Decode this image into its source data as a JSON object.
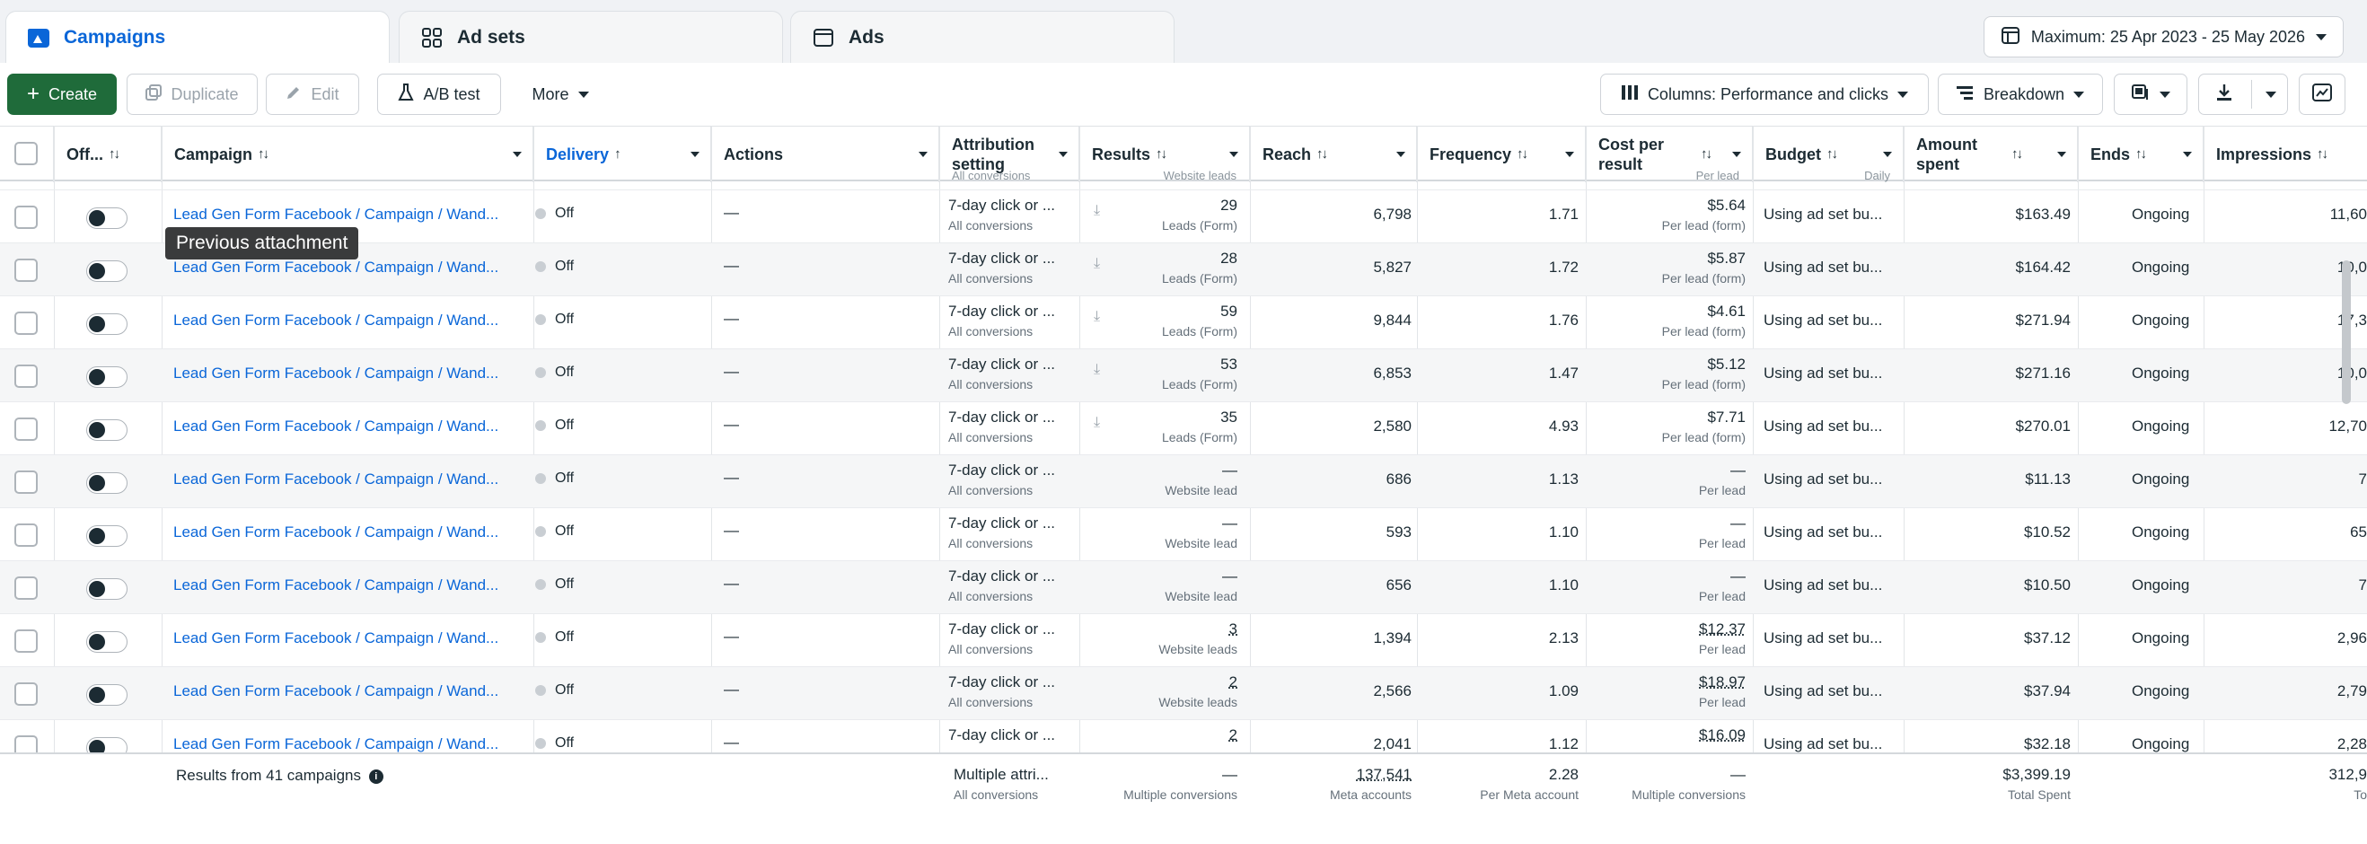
{
  "tabs": [
    {
      "label": "Campaigns",
      "icon": "campaigns-icon"
    },
    {
      "label": "Ad sets",
      "icon": "adsets-grid-icon"
    },
    {
      "label": "Ads",
      "icon": "ads-window-icon"
    }
  ],
  "date_range": "Maximum: 25 Apr 2023 - 25 May 2026",
  "toolbar": {
    "create": "Create",
    "duplicate": "Duplicate",
    "edit": "Edit",
    "ab_test": "A/B test",
    "more": "More",
    "columns": "Columns: Performance and clicks",
    "breakdown": "Breakdown"
  },
  "columns": {
    "off": "Off...",
    "campaign": "Campaign",
    "delivery": "Delivery",
    "actions": "Actions",
    "attribution": "Attribution setting",
    "results": "Results",
    "reach": "Reach",
    "frequency": "Frequency",
    "cost": "Cost per result",
    "budget": "Budget",
    "amount": "Amount spent",
    "ends": "Ends",
    "impressions": "Impressions"
  },
  "clipped_header_subs": {
    "attribution": "All conversions",
    "results": "Website leads",
    "cost": "Per lead",
    "budget": "Daily"
  },
  "rows": [
    {
      "campaign": "Lead Gen Form Facebook / Campaign / Wand...",
      "delivery": "Off",
      "actions": "—",
      "attribution": "7-day click or ...",
      "attribution_sub": "All conversions",
      "results": "29",
      "results_sub": "Leads (Form)",
      "reach": "6,798",
      "frequency": "1.71",
      "cost": "$5.64",
      "cost_sub": "Per lead (form)",
      "budget": "Using ad set bu...",
      "amount": "$163.49",
      "ends": "Ongoing",
      "impressions": "11,60"
    },
    {
      "campaign": "Lead Gen Form Facebook / Campaign / Wand...",
      "delivery": "Off",
      "actions": "—",
      "attribution": "7-day click or ...",
      "attribution_sub": "All conversions",
      "results": "28",
      "results_sub": "Leads (Form)",
      "reach": "5,827",
      "frequency": "1.72",
      "cost": "$5.87",
      "cost_sub": "Per lead (form)",
      "budget": "Using ad set bu...",
      "amount": "$164.42",
      "ends": "Ongoing",
      "impressions": "10,0"
    },
    {
      "campaign": "Lead Gen Form Facebook / Campaign / Wand...",
      "delivery": "Off",
      "actions": "—",
      "attribution": "7-day click or ...",
      "attribution_sub": "All conversions",
      "results": "59",
      "results_sub": "Leads (Form)",
      "reach": "9,844",
      "frequency": "1.76",
      "cost": "$4.61",
      "cost_sub": "Per lead (form)",
      "budget": "Using ad set bu...",
      "amount": "$271.94",
      "ends": "Ongoing",
      "impressions": "17,3"
    },
    {
      "campaign": "Lead Gen Form Facebook / Campaign / Wand...",
      "delivery": "Off",
      "actions": "—",
      "attribution": "7-day click or ...",
      "attribution_sub": "All conversions",
      "results": "53",
      "results_sub": "Leads (Form)",
      "reach": "6,853",
      "frequency": "1.47",
      "cost": "$5.12",
      "cost_sub": "Per lead (form)",
      "budget": "Using ad set bu...",
      "amount": "$271.16",
      "ends": "Ongoing",
      "impressions": "10,0"
    },
    {
      "campaign": "Lead Gen Form Facebook / Campaign / Wand...",
      "delivery": "Off",
      "actions": "—",
      "attribution": "7-day click or ...",
      "attribution_sub": "All conversions",
      "results": "35",
      "results_sub": "Leads (Form)",
      "reach": "2,580",
      "frequency": "4.93",
      "cost": "$7.71",
      "cost_sub": "Per lead (form)",
      "budget": "Using ad set bu...",
      "amount": "$270.01",
      "ends": "Ongoing",
      "impressions": "12,70"
    },
    {
      "campaign": "Lead Gen Form Facebook / Campaign / Wand...",
      "delivery": "Off",
      "actions": "—",
      "attribution": "7-day click or ...",
      "attribution_sub": "All conversions",
      "results": "—",
      "results_sub": "Website lead",
      "reach": "686",
      "frequency": "1.13",
      "cost": "—",
      "cost_sub": "Per lead",
      "budget": "Using ad set bu...",
      "amount": "$11.13",
      "ends": "Ongoing",
      "impressions": "7"
    },
    {
      "campaign": "Lead Gen Form Facebook / Campaign / Wand...",
      "delivery": "Off",
      "actions": "—",
      "attribution": "7-day click or ...",
      "attribution_sub": "All conversions",
      "results": "—",
      "results_sub": "Website lead",
      "reach": "593",
      "frequency": "1.10",
      "cost": "—",
      "cost_sub": "Per lead",
      "budget": "Using ad set bu...",
      "amount": "$10.52",
      "ends": "Ongoing",
      "impressions": "65"
    },
    {
      "campaign": "Lead Gen Form Facebook / Campaign / Wand...",
      "delivery": "Off",
      "actions": "—",
      "attribution": "7-day click or ...",
      "attribution_sub": "All conversions",
      "results": "—",
      "results_sub": "Website lead",
      "reach": "656",
      "frequency": "1.10",
      "cost": "—",
      "cost_sub": "Per lead",
      "budget": "Using ad set bu...",
      "amount": "$10.50",
      "ends": "Ongoing",
      "impressions": "7"
    },
    {
      "campaign": "Lead Gen Form Facebook / Campaign / Wand...",
      "delivery": "Off",
      "actions": "—",
      "attribution": "7-day click or ...",
      "attribution_sub": "All conversions",
      "results": "3",
      "results_sub": "Website leads",
      "reach": "1,394",
      "frequency": "2.13",
      "cost": "$12.37",
      "cost_sub": "Per lead",
      "budget": "Using ad set bu...",
      "amount": "$37.12",
      "ends": "Ongoing",
      "impressions": "2,96"
    },
    {
      "campaign": "Lead Gen Form Facebook / Campaign / Wand...",
      "delivery": "Off",
      "actions": "—",
      "attribution": "7-day click or ...",
      "attribution_sub": "All conversions",
      "results": "2",
      "results_sub": "Website leads",
      "reach": "2,566",
      "frequency": "1.09",
      "cost": "$18.97",
      "cost_sub": "Per lead",
      "budget": "Using ad set bu...",
      "amount": "$37.94",
      "ends": "Ongoing",
      "impressions": "2,79"
    },
    {
      "campaign": "Lead Gen Form Facebook / Campaign / Wand...",
      "delivery": "Off",
      "actions": "—",
      "attribution": "7-day click or ...",
      "attribution_sub": "",
      "results": "2",
      "results_sub": "",
      "reach": "2,041",
      "frequency": "1.12",
      "cost": "$16.09",
      "cost_sub": "",
      "budget": "Using ad set bu...",
      "amount": "$32.18",
      "ends": "Ongoing",
      "impressions": "2,28"
    }
  ],
  "footer": {
    "label": "Results from 41 campaigns",
    "attribution": "Multiple attri...",
    "attribution_sub": "All conversions",
    "results": "—",
    "results_sub": "Multiple conversions",
    "reach": "137,541",
    "reach_sub": "Meta accounts",
    "frequency": "2.28",
    "frequency_sub": "Per Meta account",
    "cost": "—",
    "cost_sub": "Multiple conversions",
    "amount": "$3,399.19",
    "amount_sub": "Total Spent",
    "impressions": "312,9",
    "impressions_sub": "To"
  },
  "tooltip": "Previous attachment",
  "colors": {
    "accent": "#0a66d8",
    "create": "#1f6b3a"
  }
}
